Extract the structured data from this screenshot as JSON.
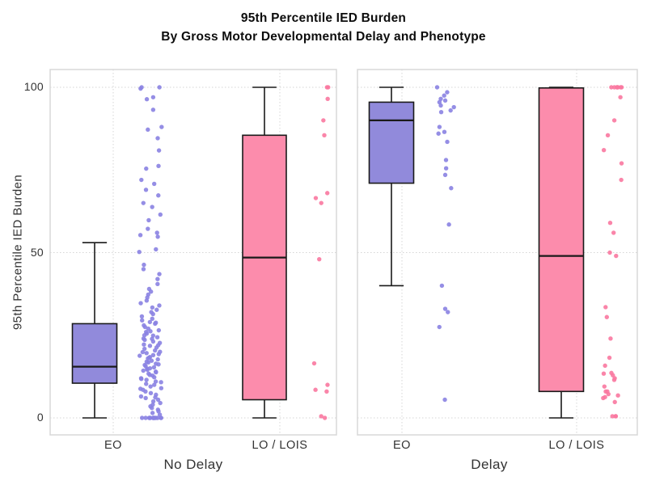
{
  "title": {
    "line1": "95th Percentile IED Burden",
    "line2": "By Gross Motor Developmental Delay and Phenotype"
  },
  "y_axis": {
    "label": "95th Percentile IED Burden",
    "ticks": [
      "0",
      "50",
      "100"
    ],
    "range": [
      0,
      100
    ]
  },
  "colors": {
    "purple_box": "#918ADB",
    "purple_dot": "#8A82E2",
    "pink_box": "#FC8CAC",
    "pink_dot": "#FA78A0",
    "box_stroke": "#1A1A1A",
    "grid": "#D6D6D6",
    "panel_border": "#D8D8D8",
    "text": "#333333"
  },
  "chart_data": {
    "type": "boxplot-with-jitter",
    "title": "95th Percentile IED Burden By Gross Motor Developmental Delay and Phenotype",
    "ylabel": "95th Percentile IED Burden",
    "ylim": [
      0,
      100
    ],
    "y_ticks": [
      0,
      50,
      100
    ],
    "grid": "dotted",
    "panels": [
      {
        "x_title": "No Delay",
        "groups": [
          {
            "label": "EO",
            "color_key": "purple",
            "box": {
              "whisker_low": 0,
              "q1": 10.5,
              "median": 15.5,
              "q3": 28.5,
              "whisker_high": 53
            },
            "points": [
              0,
              0,
              0,
              0,
              0,
              0,
              0,
              0,
              0,
              0,
              0,
              0,
              0,
              0,
              1,
              1.5,
              2,
              2.5,
              3,
              3.5,
              4,
              4.5,
              5,
              5.5,
              6,
              6.2,
              6.5,
              7,
              7.5,
              8,
              8.5,
              8.8,
              9,
              9.5,
              10,
              10.3,
              10.8,
              11,
              11.5,
              11.8,
              12,
              12.3,
              12.8,
              13,
              13.4,
              13.8,
              14,
              14.3,
              14.6,
              14.9,
              15,
              15.3,
              15.7,
              16,
              16.2,
              16.4,
              16.8,
              17,
              17.3,
              17.7,
              18,
              18.2,
              18.4,
              18.8,
              19,
              19.3,
              19.6,
              19.9,
              20,
              20.4,
              20.9,
              21.3,
              21.8,
              22,
              22.2,
              22.7,
              23.1,
              23.6,
              23.9,
              24,
              24.4,
              24.9,
              25,
              25.5,
              26,
              26.2,
              26.5,
              27,
              27.5,
              28,
              28.5,
              28.8,
              29,
              29.5,
              30,
              30.7,
              31.4,
              32,
              32.7,
              33.4,
              34,
              34.7,
              35.5,
              36.4,
              37.3,
              38.2,
              39,
              40.5,
              42,
              43.5,
              45,
              46.3,
              50.2,
              51,
              54.8,
              55.3,
              56,
              57.2,
              59.8,
              61.5,
              63.8,
              65,
              67.3,
              69,
              70.8,
              72,
              75.4,
              76.2,
              80.9,
              84.6,
              87.2,
              88,
              93.2,
              96.4,
              97,
              99.6,
              100,
              100
            ]
          },
          {
            "label": "LO / LOIS",
            "color_key": "pink",
            "box": {
              "whisker_low": 0,
              "q1": 5.5,
              "median": 48.5,
              "q3": 85.5,
              "whisker_high": 100
            },
            "points": [
              100,
              100,
              96.5,
              90,
              85.5,
              68,
              66.5,
              65,
              48,
              16.5,
              10,
              8.5,
              8,
              0.5,
              0
            ]
          }
        ]
      },
      {
        "x_title": "Delay",
        "groups": [
          {
            "label": "EO",
            "color_key": "purple",
            "box": {
              "whisker_low": 40,
              "q1": 71,
              "median": 90,
              "q3": 95.5,
              "whisker_high": 100
            },
            "points": [
              100,
              98.5,
              97.5,
              96.5,
              96,
              95.5,
              94.5,
              94,
              93,
              92.5,
              88,
              86.5,
              86,
              83.5,
              78,
              75.5,
              73.5,
              69.5,
              58.5,
              40,
              33,
              32,
              27.5,
              5.5
            ]
          },
          {
            "label": "LO / LOIS",
            "color_key": "pink",
            "box": {
              "whisker_low": 0,
              "q1": 8,
              "median": 49,
              "q3": 99.8,
              "whisker_high": 100
            },
            "points": [
              100,
              100,
              100,
              100,
              100,
              100,
              100,
              97,
              90,
              85.5,
              81,
              77,
              72,
              59,
              56,
              50,
              49,
              33.5,
              30.5,
              24,
              18.2,
              15.8,
              13.6,
              13.4,
              12.9,
              12,
              11.5,
              9.5,
              8,
              8,
              7.2,
              6.8,
              6.3,
              6,
              4.8,
              0.5,
              0.5,
              0.5
            ]
          }
        ]
      }
    ]
  }
}
